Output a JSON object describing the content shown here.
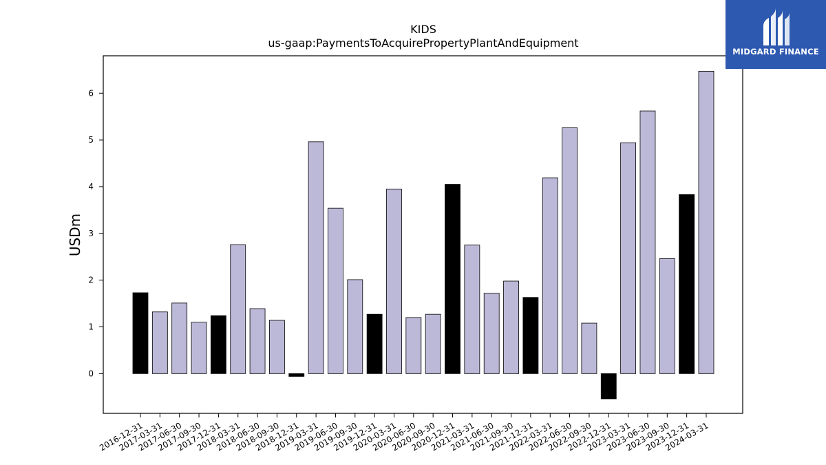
{
  "chart_data": {
    "type": "bar",
    "title": "KIDS",
    "subtitle": "us-gaap:PaymentsToAcquirePropertyPlantAndEquipment",
    "xlabel": "",
    "ylabel": "USDm",
    "ylim": [
      -0.85,
      6.8
    ],
    "yticks": [
      "0",
      "1",
      "2",
      "3",
      "4",
      "5",
      "6"
    ],
    "grid": false,
    "categories": [
      "2016-12-31",
      "2017-03-31",
      "2017-06-30",
      "2017-09-30",
      "2017-12-31",
      "2018-03-31",
      "2018-06-30",
      "2018-09-30",
      "2018-12-31",
      "2019-03-31",
      "2019-06-30",
      "2019-09-30",
      "2019-12-31",
      "2020-03-31",
      "2020-06-30",
      "2020-09-30",
      "2020-12-31",
      "2021-03-31",
      "2021-06-30",
      "2021-09-30",
      "2021-12-31",
      "2022-03-31",
      "2022-06-30",
      "2022-09-30",
      "2022-12-31",
      "2023-03-31",
      "2023-06-30",
      "2023-09-30",
      "2023-12-31",
      "2024-03-31"
    ],
    "values": [
      1.73,
      1.32,
      1.51,
      1.1,
      1.24,
      2.76,
      1.39,
      1.14,
      -0.06,
      4.96,
      3.54,
      2.01,
      1.27,
      3.95,
      1.2,
      1.27,
      4.05,
      2.75,
      1.72,
      1.98,
      1.63,
      4.19,
      5.26,
      1.08,
      -0.54,
      4.94,
      5.62,
      2.46,
      3.83,
      6.47
    ],
    "highlight": [
      true,
      false,
      false,
      false,
      true,
      false,
      false,
      false,
      true,
      false,
      false,
      false,
      true,
      false,
      false,
      false,
      true,
      false,
      false,
      false,
      true,
      false,
      false,
      false,
      true,
      false,
      false,
      false,
      true,
      false
    ],
    "colors": {
      "normal": "#bcb9d8",
      "highlight": "#000000",
      "edge": "#000000"
    }
  },
  "logo": {
    "text": "MIDGARD FINANCE",
    "background": "#2d59b0"
  }
}
